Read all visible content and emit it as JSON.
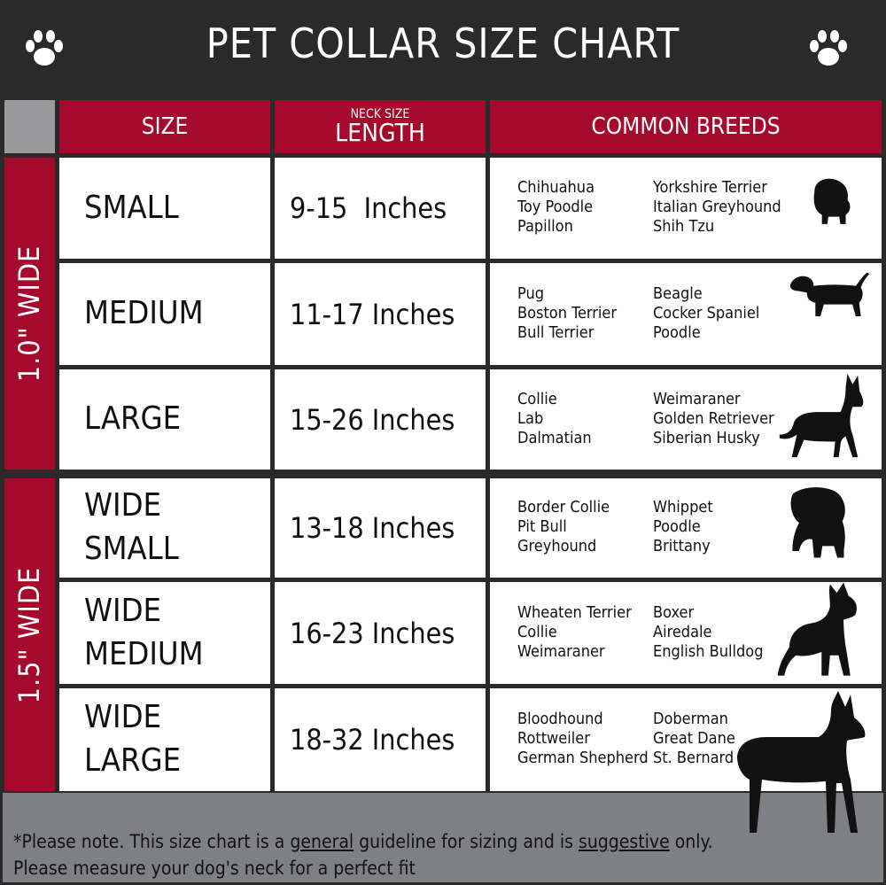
{
  "title": "PET COLLAR SIZE CHART",
  "headers": {
    "size": "SIZE",
    "neck_small": "NECK SIZE",
    "length": "LENGTH",
    "breeds": "COMMON BREEDS"
  },
  "bands": [
    "1.0\" WIDE",
    "1.5\" WIDE"
  ],
  "colors": {
    "accent": "#a50a2c",
    "dark": "#2a2a2a",
    "footer": "#7f8083"
  },
  "rows": [
    {
      "size": "SMALL",
      "length": "9-15  Inches",
      "b1": [
        "Chihuahua",
        "Toy Poodle",
        "Papillon"
      ],
      "b2": [
        "Yorkshire Terrier",
        "Italian Greyhound",
        "Shih Tzu"
      ],
      "icon": "small-fluffy-dog-icon"
    },
    {
      "size": "MEDIUM",
      "length": "11-17 Inches",
      "b1": [
        "Pug",
        "Boston Terrier",
        "Bull Terrier"
      ],
      "b2": [
        "Beagle",
        "Cocker Spaniel",
        "Poodle"
      ],
      "icon": "dachshund-icon"
    },
    {
      "size": "LARGE",
      "length": "15-26 Inches",
      "b1": [
        "Collie",
        "Lab",
        "Dalmatian"
      ],
      "b2": [
        "Weimaraner",
        "Golden Retriever",
        "Siberian Husky"
      ],
      "icon": "shepherd-dog-icon"
    },
    {
      "size": "WIDE\nSMALL",
      "length": "13-18 Inches",
      "b1": [
        "Border Collie",
        "Pit Bull",
        "Greyhound"
      ],
      "b2": [
        "Whippet",
        "Poodle",
        "Brittany"
      ],
      "icon": "bulldog-icon"
    },
    {
      "size": "WIDE\nMEDIUM",
      "length": "16-23 Inches",
      "b1": [
        "Wheaten Terrier",
        "Collie",
        "Weimaraner"
      ],
      "b2": [
        "Boxer",
        "Airedale",
        "English Bulldog"
      ],
      "icon": "pitbull-icon"
    },
    {
      "size": "WIDE\nLARGE",
      "length": "18-32 Inches",
      "b1": [
        "Bloodhound",
        "Rottweiler",
        "German Shepherd"
      ],
      "b2": [
        "Doberman",
        "Great Dane",
        "St. Bernard"
      ],
      "icon": "doberman-icon"
    }
  ],
  "footer": {
    "p1": "*Please note. This size chart is a ",
    "u1": "general",
    "p2": " guideline for sizing and is ",
    "u2": "suggestive",
    "p3": " only.",
    "line2": "Please measure your dog's neck for a perfect fit"
  }
}
